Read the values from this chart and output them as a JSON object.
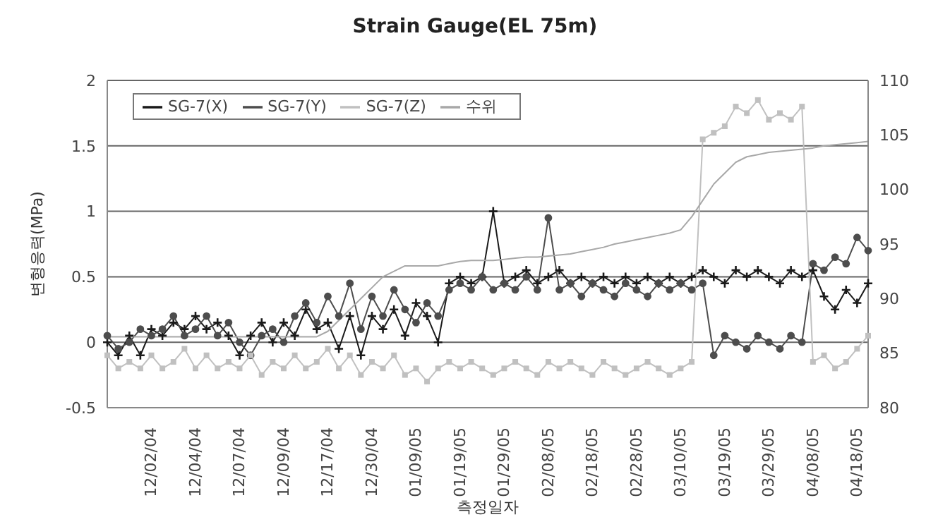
{
  "chart_data": {
    "type": "line",
    "title": "Strain Gauge(EL 75m)",
    "xlabel": "측정일자",
    "ylabel": "변형응력(MPa)",
    "categories": [
      null,
      null,
      null,
      null,
      "12/02/04",
      null,
      null,
      null,
      "12/04/04",
      null,
      null,
      null,
      "12/07/04",
      null,
      null,
      null,
      "12/09/04",
      null,
      null,
      null,
      "12/17/04",
      null,
      null,
      null,
      "12/30/04",
      null,
      null,
      null,
      "01/09/05",
      null,
      null,
      null,
      "01/19/05",
      null,
      null,
      null,
      "01/29/05",
      null,
      null,
      null,
      "02/08/05",
      null,
      null,
      null,
      "02/18/05",
      null,
      null,
      null,
      "02/28/05",
      null,
      null,
      null,
      "03/10/05",
      null,
      null,
      null,
      "03/19/05",
      null,
      null,
      null,
      "03/29/05",
      null,
      null,
      null,
      "04/08/05",
      null,
      null,
      null,
      "04/18/05",
      null
    ],
    "series": [
      {
        "name": "SG-7(X)",
        "color": "#1a1a1a",
        "marker": "cross",
        "values": [
          0.0,
          -0.1,
          0.05,
          -0.1,
          0.1,
          0.05,
          0.15,
          0.1,
          0.2,
          0.1,
          0.15,
          0.05,
          -0.1,
          0.05,
          0.15,
          0.0,
          0.15,
          0.05,
          0.25,
          0.1,
          0.15,
          -0.05,
          0.2,
          -0.1,
          0.2,
          0.1,
          0.25,
          0.05,
          0.3,
          0.2,
          0.0,
          0.45,
          0.5,
          0.45,
          0.5,
          1.0,
          0.45,
          0.5,
          0.55,
          0.45,
          0.5,
          0.55,
          0.45,
          0.5,
          0.45,
          0.5,
          0.45,
          0.5,
          0.45,
          0.5,
          0.45,
          0.5,
          0.45,
          0.5,
          0.55,
          0.5,
          0.45,
          0.55,
          0.5,
          0.55,
          0.5,
          0.45,
          0.55,
          0.5,
          0.55,
          0.35,
          0.25,
          0.4,
          0.3,
          0.45
        ]
      },
      {
        "name": "SG-7(Y)",
        "color": "#4d4d4d",
        "marker": "circle",
        "values": [
          0.05,
          -0.05,
          0.0,
          0.1,
          0.05,
          0.1,
          0.2,
          0.05,
          0.1,
          0.2,
          0.05,
          0.15,
          0.0,
          -0.1,
          0.05,
          0.1,
          0.0,
          0.2,
          0.3,
          0.15,
          0.35,
          0.2,
          0.45,
          0.1,
          0.35,
          0.2,
          0.4,
          0.25,
          0.15,
          0.3,
          0.2,
          0.4,
          0.45,
          0.4,
          0.5,
          0.4,
          0.45,
          0.4,
          0.5,
          0.4,
          0.95,
          0.4,
          0.45,
          0.35,
          0.45,
          0.4,
          0.35,
          0.45,
          0.4,
          0.35,
          0.45,
          0.4,
          0.45,
          0.4,
          0.45,
          -0.1,
          0.05,
          0.0,
          -0.05,
          0.05,
          0.0,
          -0.05,
          0.05,
          0.0,
          0.6,
          0.55,
          0.65,
          0.6,
          0.8,
          0.7
        ]
      },
      {
        "name": "SG-7(Z)",
        "color": "#c0c0c0",
        "marker": "square",
        "values": [
          -0.1,
          -0.2,
          -0.15,
          -0.2,
          -0.1,
          -0.2,
          -0.15,
          -0.05,
          -0.2,
          -0.1,
          -0.2,
          -0.15,
          -0.2,
          -0.1,
          -0.25,
          -0.15,
          -0.2,
          -0.1,
          -0.2,
          -0.15,
          -0.05,
          -0.2,
          -0.1,
          -0.25,
          -0.15,
          -0.2,
          -0.1,
          -0.25,
          -0.2,
          -0.3,
          -0.2,
          -0.15,
          -0.2,
          -0.15,
          -0.2,
          -0.25,
          -0.2,
          -0.15,
          -0.2,
          -0.25,
          -0.15,
          -0.2,
          -0.15,
          -0.2,
          -0.25,
          -0.15,
          -0.2,
          -0.25,
          -0.2,
          -0.15,
          -0.2,
          -0.25,
          -0.2,
          -0.15,
          1.55,
          1.6,
          1.65,
          1.8,
          1.75,
          1.85,
          1.7,
          1.75,
          1.7,
          1.8,
          -0.15,
          -0.1,
          -0.2,
          -0.15,
          -0.05,
          0.05
        ]
      },
      {
        "name": "수위",
        "color": "#a8a8a8",
        "marker": "none",
        "axis": "y2",
        "values": [
          86.5,
          86.5,
          86.5,
          86.5,
          86.5,
          86.5,
          86.5,
          86.5,
          86.5,
          86.5,
          86.5,
          86.5,
          86.5,
          86.5,
          86.5,
          86.5,
          86.5,
          86.5,
          86.5,
          86.5,
          87,
          88,
          89,
          90,
          91,
          92,
          92.5,
          93,
          93,
          93,
          93,
          93.2,
          93.4,
          93.5,
          93.5,
          93.5,
          93.6,
          93.7,
          93.8,
          93.8,
          93.9,
          94,
          94.1,
          94.3,
          94.5,
          94.7,
          95,
          95.2,
          95.4,
          95.6,
          95.8,
          96,
          96.3,
          97.5,
          99,
          100.5,
          101.5,
          102.5,
          103,
          103.2,
          103.4,
          103.5,
          103.6,
          103.7,
          103.8,
          104,
          104.1,
          104.2,
          104.3,
          104.4
        ]
      }
    ],
    "ylim": [
      -0.5,
      2
    ],
    "yticks": [
      -0.5,
      0,
      0.5,
      1,
      1.5,
      2
    ],
    "y2lim": [
      80,
      110
    ],
    "y2ticks": [
      80,
      85,
      90,
      95,
      100,
      105,
      110
    ],
    "grid": "y",
    "legend": "top left"
  }
}
